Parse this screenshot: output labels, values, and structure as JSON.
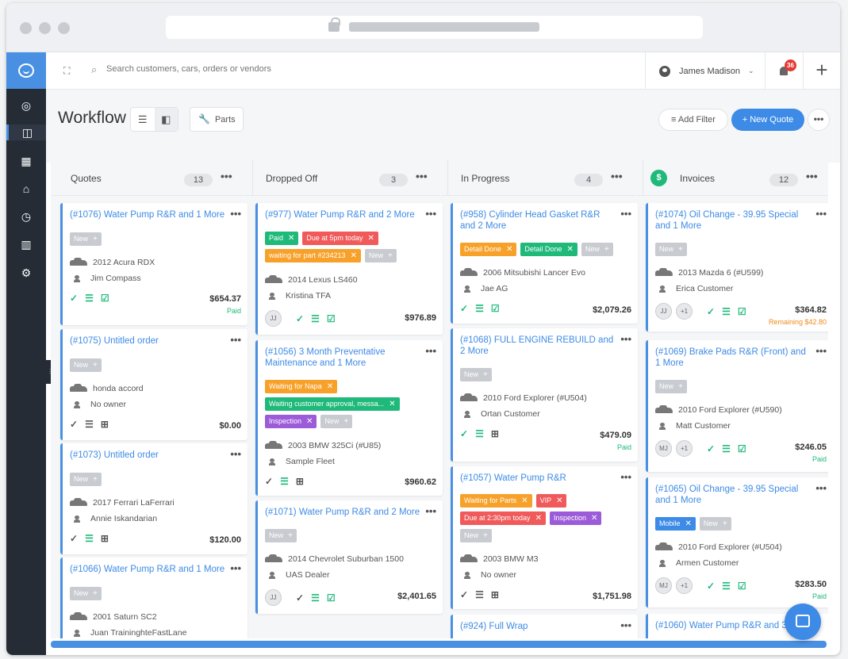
{
  "topbar": {
    "search_placeholder": "Search customers, cars, orders or vendors",
    "user_name": "James Madison",
    "notification_count": "36"
  },
  "header": {
    "title": "Workflow",
    "parts_label": "Parts",
    "add_filter_label": "Add Filter",
    "new_quote_label": "+ New Quote"
  },
  "columns": [
    {
      "name": "Quotes",
      "count": "13"
    },
    {
      "name": "Dropped Off",
      "count": "3"
    },
    {
      "name": "In Progress",
      "count": "4"
    },
    {
      "name": "Invoices",
      "count": "12"
    }
  ],
  "cards": {
    "c1076": {
      "title": "(#1076) Water Pump R&R and 1 More",
      "tag": "New",
      "vehicle": "2012 Acura RDX",
      "customer": "Jim Compass",
      "price": "$654.37",
      "status": "Paid"
    },
    "c1075": {
      "title": "(#1075) Untitled order",
      "tag": "New",
      "vehicle": "honda accord",
      "customer": "No owner",
      "price": "$0.00"
    },
    "c1073": {
      "title": "(#1073) Untitled order",
      "tag": "New",
      "vehicle": "2017 Ferrari LaFerrari",
      "customer": "Annie Iskandarian",
      "price": "$120.00"
    },
    "c1066": {
      "title": "(#1066) Water Pump R&R and 1 More",
      "tag": "New",
      "vehicle": "2001 Saturn SC2",
      "customer": "Juan TraininghteFastLane"
    },
    "c977": {
      "title": "(#977) Water Pump R&R and 2 More",
      "tags": [
        "Paid",
        "Due at 5pm today",
        "waiting for part #234213",
        "New"
      ],
      "vehicle": "2014 Lexus LS460",
      "customer": "Kristina TFA",
      "avatar": "JJ",
      "price": "$976.89"
    },
    "c1056": {
      "title": "(#1056) 3 Month Preventative Maintenance and 1 More",
      "tags": [
        "Waiting for Napa",
        "Waiting customer approval, messa...",
        "Inspection",
        "New"
      ],
      "vehicle": "2003 BMW 325Ci (#U85)",
      "customer": "Sample Fleet",
      "price": "$960.62"
    },
    "c1071": {
      "title": "(#1071) Water Pump R&R and 2 More",
      "tag": "New",
      "vehicle": "2014 Chevrolet Suburban 1500",
      "customer": "UAS Dealer",
      "avatar": "JJ",
      "price": "$2,401.65"
    },
    "c958": {
      "title": "(#958) Cylinder Head Gasket R&R and 2 More",
      "tags": [
        "Detail Done",
        "Detail Done",
        "New"
      ],
      "vehicle": "2006 Mitsubishi Lancer Evo",
      "customer": "Jae AG",
      "price": "$2,079.26"
    },
    "c1068": {
      "title": "(#1068) FULL ENGINE REBUILD and 2 More",
      "tag": "New",
      "vehicle": "2010 Ford Explorer (#U504)",
      "customer": "Ortan Customer",
      "price": "$479.09",
      "status": "Paid"
    },
    "c1057": {
      "title": "(#1057) Water Pump R&R",
      "tags": [
        "Waiting for Parts",
        "VIP",
        "Due at 2:30pm today",
        "Inspection",
        "New"
      ],
      "vehicle": "2003 BMW M3",
      "customer": "No owner",
      "price": "$1,751.98"
    },
    "c924": {
      "title": "(#924) Full Wrap"
    },
    "c1074": {
      "title": "(#1074) Oil Change - 39.95 Special and 1 More",
      "tag": "New",
      "vehicle": "2013 Mazda 6 (#U599)",
      "customer": "Erica Customer",
      "avatar": "JJ",
      "avatar_more": "+1",
      "price": "$364.82",
      "status": "Remaining $42.80"
    },
    "c1069": {
      "title": "(#1069) Brake Pads R&R (Front) and 1 More",
      "tag": "New",
      "vehicle": "2010 Ford Explorer (#U590)",
      "customer": "Matt Customer",
      "avatar": "MJ",
      "avatar_more": "+1",
      "price": "$246.05",
      "status": "Paid"
    },
    "c1065": {
      "title": "(#1065) Oil Change - 39.95 Special and 1 More",
      "tags": [
        "Mobile",
        "New"
      ],
      "vehicle": "2010 Ford Explorer (#U504)",
      "customer": "Armen Customer",
      "avatar": "MJ",
      "avatar_more": "+1",
      "price": "$283.50",
      "status": "Paid"
    },
    "c1060": {
      "title": "(#1060) Water Pump R&R and 3 More"
    }
  }
}
